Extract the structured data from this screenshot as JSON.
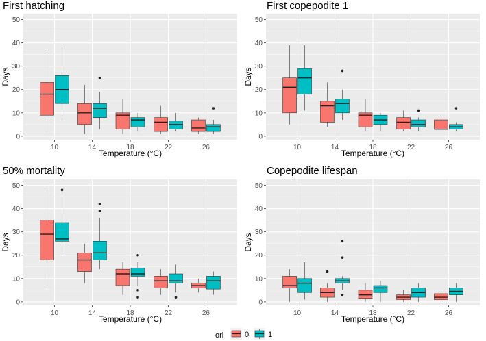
{
  "chart_data": [
    {
      "type": "boxplot",
      "title": "First hatching",
      "xlabel": "Temperature (°C)",
      "ylabel": "Days",
      "categories": [
        "10",
        "14",
        "18",
        "22",
        "26"
      ],
      "yticks": [
        0,
        10,
        20,
        30,
        40,
        50
      ],
      "ylim": [
        -1.5,
        52.5
      ],
      "series": [
        {
          "name": "0",
          "boxes": [
            {
              "min": 2,
              "q1": 9,
              "median": 18,
              "q3": 23,
              "max": 37,
              "outliers": []
            },
            {
              "min": 1,
              "q1": 5,
              "median": 10,
              "q3": 14,
              "max": 22,
              "outliers": []
            },
            {
              "min": 1,
              "q1": 3,
              "median": 9,
              "q3": 10,
              "max": 16,
              "outliers": []
            },
            {
              "min": 1,
              "q1": 2,
              "median": 6,
              "q3": 8,
              "max": 13,
              "outliers": []
            },
            {
              "min": 1,
              "q1": 2,
              "median": 3.5,
              "q3": 7,
              "max": 8,
              "outliers": []
            }
          ]
        },
        {
          "name": "1",
          "boxes": [
            {
              "min": 8,
              "q1": 14,
              "median": 20,
              "q3": 26,
              "max": 38,
              "outliers": []
            },
            {
              "min": 3,
              "q1": 8,
              "median": 12,
              "q3": 14,
              "max": 19,
              "outliers": [
                25
              ]
            },
            {
              "min": 2,
              "q1": 4,
              "median": 7,
              "q3": 8,
              "max": 10,
              "outliers": []
            },
            {
              "min": 2,
              "q1": 3,
              "median": 5,
              "q3": 6.5,
              "max": 10,
              "outliers": []
            },
            {
              "min": 1,
              "q1": 2,
              "median": 4,
              "q3": 5,
              "max": 7,
              "outliers": [
                12
              ]
            }
          ]
        }
      ]
    },
    {
      "type": "boxplot",
      "title": "First copepodite 1",
      "xlabel": "Temperature (°C)",
      "ylabel": "Days",
      "categories": [
        "10",
        "14",
        "18",
        "22",
        "26"
      ],
      "yticks": [
        0,
        10,
        20,
        30,
        40,
        50
      ],
      "ylim": [
        -1.5,
        52.5
      ],
      "series": [
        {
          "name": "0",
          "boxes": [
            {
              "min": 5,
              "q1": 10,
              "median": 21,
              "q3": 25,
              "max": 39,
              "outliers": []
            },
            {
              "min": 4,
              "q1": 6,
              "median": 13,
              "q3": 15,
              "max": 23,
              "outliers": []
            },
            {
              "min": 2,
              "q1": 4,
              "median": 9,
              "q3": 10,
              "max": 16,
              "outliers": []
            },
            {
              "min": 2,
              "q1": 3,
              "median": 6,
              "q3": 8,
              "max": 11,
              "outliers": []
            },
            {
              "min": 3,
              "q1": 3,
              "median": 3,
              "q3": 7,
              "max": 8,
              "outliers": []
            }
          ]
        },
        {
          "name": "1",
          "boxes": [
            {
              "min": 11,
              "q1": 18,
              "median": 25,
              "q3": 29,
              "max": 39,
              "outliers": []
            },
            {
              "min": 7,
              "q1": 10,
              "median": 14,
              "q3": 16,
              "max": 20,
              "outliers": [
                28
              ]
            },
            {
              "min": 2,
              "q1": 5,
              "median": 7,
              "q3": 9,
              "max": 10,
              "outliers": []
            },
            {
              "min": 2,
              "q1": 4,
              "median": 5,
              "q3": 7,
              "max": 8,
              "outliers": [
                11
              ]
            },
            {
              "min": 2,
              "q1": 3,
              "median": 4,
              "q3": 5,
              "max": 6,
              "outliers": [
                12
              ]
            }
          ]
        }
      ]
    },
    {
      "type": "boxplot",
      "title": "50% mortality",
      "xlabel": "Temperature (°C)",
      "ylabel": "Days",
      "categories": [
        "10",
        "14",
        "18",
        "22",
        "26"
      ],
      "yticks": [
        0,
        10,
        20,
        30,
        40,
        50
      ],
      "ylim": [
        -1.5,
        52.5
      ],
      "series": [
        {
          "name": "0",
          "boxes": [
            {
              "min": 6,
              "q1": 18,
              "median": 29,
              "q3": 35,
              "max": 49,
              "outliers": []
            },
            {
              "min": 8,
              "q1": 13,
              "median": 18,
              "q3": 21,
              "max": 25,
              "outliers": []
            },
            {
              "min": 3,
              "q1": 7,
              "median": 12,
              "q3": 14,
              "max": 17,
              "outliers": []
            },
            {
              "min": 3,
              "q1": 6,
              "median": 9,
              "q3": 11,
              "max": 14,
              "outliers": []
            },
            {
              "min": 4,
              "q1": 6,
              "median": 7,
              "q3": 8,
              "max": 10,
              "outliers": []
            }
          ]
        },
        {
          "name": "1",
          "boxes": [
            {
              "min": 20,
              "q1": 26,
              "median": 27,
              "q3": 34,
              "max": 45,
              "outliers": [
                48
              ]
            },
            {
              "min": 14,
              "q1": 18,
              "median": 21,
              "q3": 26,
              "max": 36,
              "outliers": [
                39,
                42
              ]
            },
            {
              "min": 7,
              "q1": 11,
              "median": 12,
              "q3": 14.5,
              "max": 17,
              "outliers": [
                20,
                5,
                2
              ]
            },
            {
              "min": 4,
              "q1": 8,
              "median": 9,
              "q3": 12,
              "max": 16,
              "outliers": [
                2
              ]
            },
            {
              "min": 3,
              "q1": 5.5,
              "median": 9,
              "q3": 11,
              "max": 13,
              "outliers": []
            }
          ]
        }
      ]
    },
    {
      "type": "boxplot",
      "title": "Copepodite lifespan",
      "xlabel": "Temperature (°C)",
      "ylabel": "Days",
      "categories": [
        "10",
        "14",
        "18",
        "22",
        "26"
      ],
      "yticks": [
        0,
        10,
        20,
        30,
        40,
        50
      ],
      "ylim": [
        -1.5,
        52.5
      ],
      "series": [
        {
          "name": "0",
          "boxes": [
            {
              "min": 0,
              "q1": 6,
              "median": 7,
              "q3": 11,
              "max": 14,
              "outliers": []
            },
            {
              "min": 0,
              "q1": 2,
              "median": 4,
              "q3": 6,
              "max": 8,
              "outliers": [
                13
              ]
            },
            {
              "min": 0,
              "q1": 1.5,
              "median": 3,
              "q3": 5,
              "max": 8,
              "outliers": []
            },
            {
              "min": 0,
              "q1": 1,
              "median": 2,
              "q3": 3,
              "max": 5,
              "outliers": []
            },
            {
              "min": 0,
              "q1": 1,
              "median": 2,
              "q3": 3.5,
              "max": 4,
              "outliers": []
            }
          ]
        },
        {
          "name": "1",
          "boxes": [
            {
              "min": 1,
              "q1": 4,
              "median": 8,
              "q3": 10,
              "max": 17,
              "outliers": []
            },
            {
              "min": 5,
              "q1": 8,
              "median": 9,
              "q3": 10,
              "max": 11,
              "outliers": [
                19,
                26,
                3
              ]
            },
            {
              "min": 0,
              "q1": 4,
              "median": 6,
              "q3": 7,
              "max": 9,
              "outliers": []
            },
            {
              "min": 0,
              "q1": 2,
              "median": 4,
              "q3": 6,
              "max": 8,
              "outliers": []
            },
            {
              "min": 0,
              "q1": 3,
              "median": 4.5,
              "q3": 6,
              "max": 8,
              "outliers": []
            }
          ]
        }
      ]
    }
  ],
  "legend": {
    "title": "ori",
    "items": [
      {
        "label": "0",
        "color": "#F8766D"
      },
      {
        "label": "1",
        "color": "#00BFC4"
      }
    ]
  },
  "colors": {
    "panel": "#EBEBEB",
    "grid": "#FFFFFF",
    "text": "#4D4D4D"
  }
}
